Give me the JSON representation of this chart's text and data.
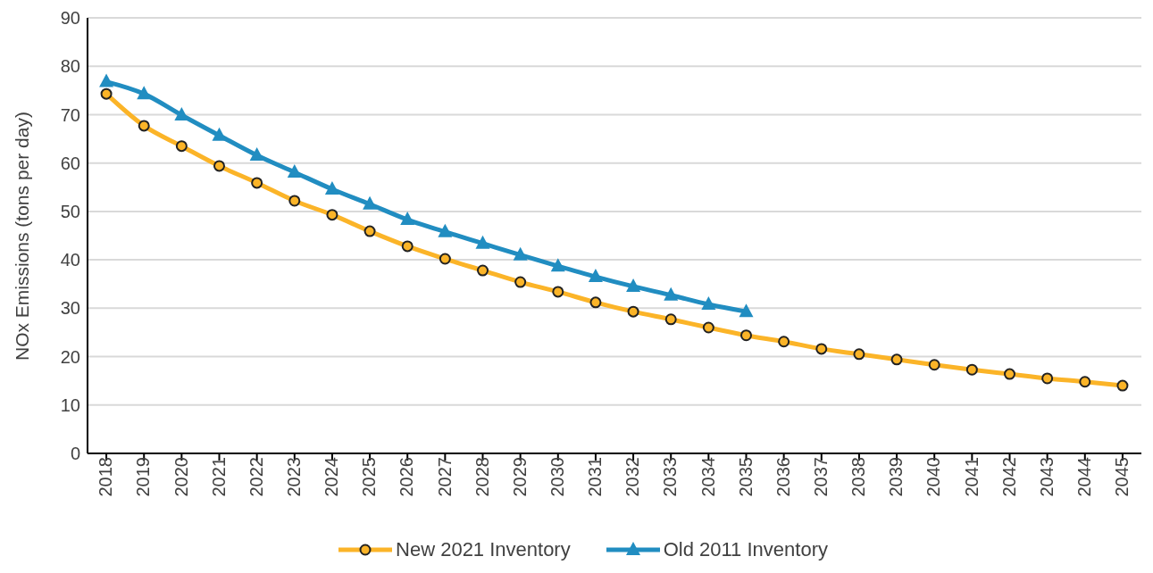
{
  "chart_data": {
    "type": "line",
    "ylabel": "NOx Emissions (tons per day)",
    "categories": [
      "2018",
      "2019",
      "2020",
      "2021",
      "2022",
      "2023",
      "2024",
      "2025",
      "2026",
      "2027",
      "2028",
      "2029",
      "2030",
      "2031",
      "2032",
      "2033",
      "2034",
      "2035",
      "2036",
      "2037",
      "2038",
      "2039",
      "2040",
      "2041",
      "2042",
      "2043",
      "2044",
      "2045"
    ],
    "series": [
      {
        "name": "New 2021 Inventory",
        "color": "#fbb428",
        "marker": "circle",
        "values": [
          74.3,
          67.7,
          63.5,
          59.4,
          55.9,
          52.2,
          49.3,
          45.9,
          42.8,
          40.2,
          37.8,
          35.4,
          33.4,
          31.2,
          29.3,
          27.7,
          26.0,
          24.4,
          23.1,
          21.6,
          20.5,
          19.4,
          18.3,
          17.3,
          16.4,
          15.5,
          14.8,
          14.0
        ]
      },
      {
        "name": "Old 2011 Inventory",
        "color": "#218dc1",
        "marker": "triangle",
        "values": [
          76.8,
          74.3,
          69.9,
          65.7,
          61.6,
          58.1,
          54.6,
          51.5,
          48.3,
          45.8,
          43.4,
          41.0,
          38.7,
          36.5,
          34.5,
          32.7,
          30.8,
          29.3,
          null,
          null,
          null,
          null,
          null,
          null,
          null,
          null,
          null,
          null
        ]
      }
    ],
    "ylim": [
      0,
      90
    ],
    "yticks": [
      0,
      10,
      20,
      30,
      40,
      50,
      60,
      70,
      80,
      90
    ],
    "grid": "y",
    "legend": "bottom",
    "line_style": "solid"
  }
}
